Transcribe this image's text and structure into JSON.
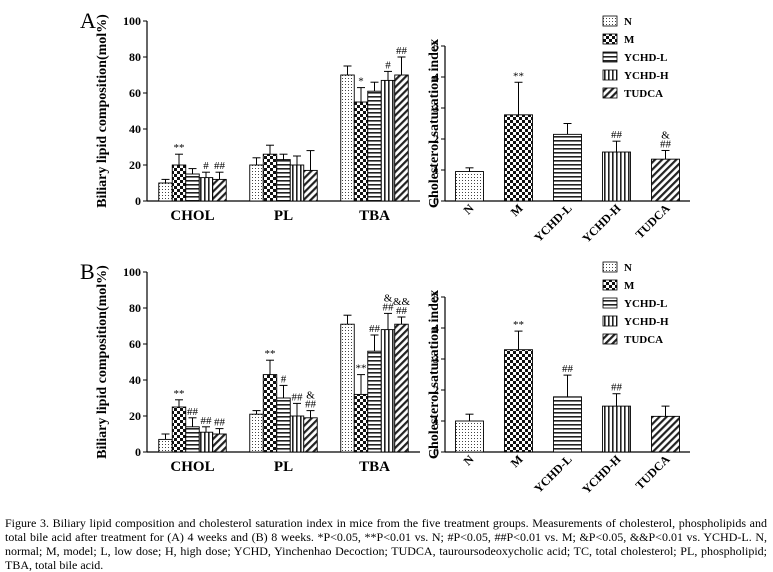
{
  "figure": {
    "caption": "Figure 3. Biliary lipid composition and cholesterol saturation index in mice from the five treatment groups. Measurements of cholesterol, phospholipids and total bile acid after treatment for (A) 4 weeks and (B) 8 weeks. *P<0.05, **P<0.01 vs. N; #P<0.05, ##P<0.01 vs. M; &P<0.05, &&P<0.01 vs. YCHD-L. N, normal; M, model; L, low dose; H, high dose; YCHD, Yinchenhao Decoction; TUDCA, tauroursodeoxycholic acid; TC, total cholesterol; PL, phospholipid; TBA, total bile acid.",
    "panel_a_label": "A",
    "panel_b_label": "B"
  },
  "legend": {
    "N": "N",
    "M": "M",
    "YCHD-L": "YCHD-L",
    "YCHD-H": "YCHD-H",
    "TUDCA": "TUDCA"
  },
  "chart_data": [
    {
      "id": "A-lipid",
      "type": "bar",
      "panel": "A",
      "title": "",
      "xlabel": "",
      "ylabel": "Biliary lipid composition(mol%)",
      "ylim": [
        0,
        100
      ],
      "yticks": [
        0,
        20,
        40,
        60,
        80,
        100
      ],
      "categories": [
        "CHOL",
        "PL",
        "TBA"
      ],
      "series": [
        {
          "name": "N",
          "values": [
            10,
            20,
            70
          ],
          "errors": [
            2,
            4,
            5
          ],
          "annotations": [
            "",
            "",
            ""
          ]
        },
        {
          "name": "M",
          "values": [
            20,
            26,
            55
          ],
          "errors": [
            6,
            5,
            8
          ],
          "annotations": [
            "**",
            "",
            "*"
          ]
        },
        {
          "name": "YCHD-L",
          "values": [
            15,
            23,
            61
          ],
          "errors": [
            3,
            3,
            5
          ],
          "annotations": [
            "",
            "",
            ""
          ]
        },
        {
          "name": "YCHD-H",
          "values": [
            13,
            20,
            67
          ],
          "errors": [
            3,
            5,
            5
          ],
          "annotations": [
            "#",
            "",
            "#"
          ]
        },
        {
          "name": "TUDCA",
          "values": [
            12,
            17,
            70
          ],
          "errors": [
            4,
            11,
            10
          ],
          "annotations": [
            "##",
            "",
            "##"
          ]
        }
      ]
    },
    {
      "id": "A-csi",
      "type": "bar",
      "panel": "A",
      "title": "",
      "xlabel": "",
      "ylabel": "Cholesterol saturation index",
      "ylim": [
        0,
        5
      ],
      "yticks": [
        0,
        1,
        2,
        3,
        4,
        5
      ],
      "categories": [
        "N",
        "M",
        "YCHD-L",
        "YCHD-H",
        "TUDCA"
      ],
      "values": [
        0.95,
        2.78,
        2.15,
        1.58,
        1.35
      ],
      "errors": [
        0.12,
        1.05,
        0.35,
        0.35,
        0.28
      ],
      "annotations": [
        "",
        "**",
        "",
        "##",
        "&\n##"
      ]
    },
    {
      "id": "B-lipid",
      "type": "bar",
      "panel": "B",
      "title": "",
      "xlabel": "",
      "ylabel": "Biliary lipid composition(mol%)",
      "ylim": [
        0,
        100
      ],
      "yticks": [
        0,
        20,
        40,
        60,
        80,
        100
      ],
      "categories": [
        "CHOL",
        "PL",
        "TBA"
      ],
      "series": [
        {
          "name": "N",
          "values": [
            7,
            21,
            71
          ],
          "errors": [
            3,
            2,
            5
          ],
          "annotations": [
            "",
            "",
            ""
          ]
        },
        {
          "name": "M",
          "values": [
            25,
            43,
            32
          ],
          "errors": [
            4,
            8,
            11
          ],
          "annotations": [
            "**",
            "**",
            "**"
          ]
        },
        {
          "name": "YCHD-L",
          "values": [
            14,
            30,
            56
          ],
          "errors": [
            5,
            7,
            9
          ],
          "annotations": [
            "##",
            "#",
            "##"
          ]
        },
        {
          "name": "YCHD-H",
          "values": [
            11,
            20,
            68
          ],
          "errors": [
            3,
            7,
            9
          ],
          "annotations": [
            "##",
            "##",
            "&\n##"
          ]
        },
        {
          "name": "TUDCA",
          "values": [
            10,
            19,
            71
          ],
          "errors": [
            3,
            4,
            4
          ],
          "annotations": [
            "##",
            "&\n##",
            "&&\n##"
          ]
        }
      ]
    },
    {
      "id": "B-csi",
      "type": "bar",
      "panel": "B",
      "title": "",
      "xlabel": "",
      "ylabel": "Cholesterol saturation index",
      "ylim": [
        0,
        5
      ],
      "yticks": [
        0,
        1,
        2,
        3,
        4,
        5
      ],
      "categories": [
        "N",
        "M",
        "YCHD-L",
        "YCHD-H",
        "TUDCA"
      ],
      "values": [
        1.0,
        3.3,
        1.78,
        1.48,
        1.15
      ],
      "errors": [
        0.22,
        0.6,
        0.7,
        0.4,
        0.33
      ],
      "annotations": [
        "",
        "**",
        "##",
        "##",
        ""
      ]
    }
  ]
}
